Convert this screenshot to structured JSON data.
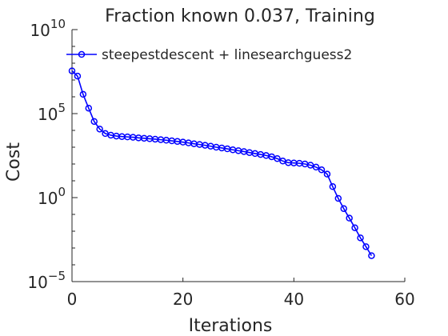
{
  "chart_data": {
    "type": "line",
    "title": "Fraction known 0.037, Training",
    "xlabel": "Iterations",
    "ylabel": "Cost",
    "xlim": [
      0,
      60
    ],
    "ylim_log10": [
      -5,
      10
    ],
    "yscale": "log",
    "grid": false,
    "legend_position": "top-left",
    "x_ticks": [
      0,
      20,
      40,
      60
    ],
    "x_tick_labels": [
      "0",
      "20",
      "40",
      "60"
    ],
    "y_ticks_log10": [
      -5,
      0,
      5,
      10
    ],
    "y_tick_labels": [
      {
        "base": "10",
        "exp": "−5"
      },
      {
        "base": "10",
        "exp": "0"
      },
      {
        "base": "10",
        "exp": "5"
      },
      {
        "base": "10",
        "exp": "10"
      }
    ],
    "series": [
      {
        "name": "steepestdescent + linesearchguess2",
        "color": "#0000ff",
        "marker": "circle",
        "x": [
          0,
          1,
          2,
          3,
          4,
          5,
          6,
          7,
          8,
          9,
          10,
          11,
          12,
          13,
          14,
          15,
          16,
          17,
          18,
          19,
          20,
          21,
          22,
          23,
          24,
          25,
          26,
          27,
          28,
          29,
          30,
          31,
          32,
          33,
          34,
          35,
          36,
          37,
          38,
          39,
          40,
          41,
          42,
          43,
          44,
          45,
          46,
          47,
          48,
          49,
          50,
          51,
          52,
          53,
          54
        ],
        "y": [
          35000000.0,
          17000000.0,
          1400000.0,
          210000.0,
          34000.0,
          12000.0,
          6500.0,
          5200.0,
          4600.0,
          4300.0,
          4100.0,
          3900.0,
          3600.0,
          3400.0,
          3200.0,
          3000.0,
          2800.0,
          2600.0,
          2400.0,
          2200.0,
          2000.0,
          1800.0,
          1600.0,
          1450.0,
          1300.0,
          1150.0,
          1000.0,
          900,
          800,
          700,
          620,
          550,
          480,
          420,
          370,
          320,
          270,
          210,
          150,
          120,
          115,
          110,
          100,
          85,
          65,
          45,
          25,
          4.5,
          0.9,
          0.22,
          0.06,
          0.016,
          0.004,
          0.0012,
          0.00035
        ]
      }
    ]
  }
}
